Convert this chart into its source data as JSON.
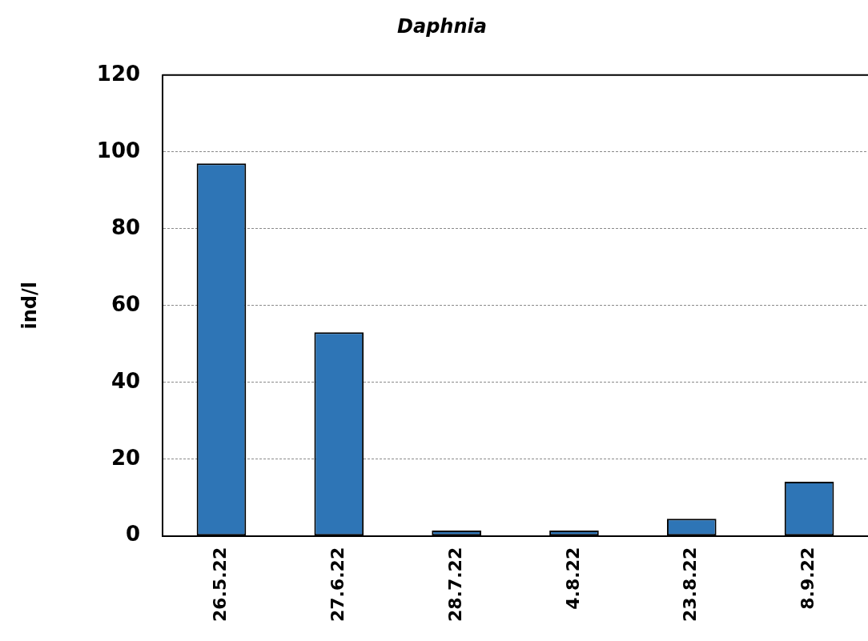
{
  "chart_data": {
    "type": "bar",
    "title": "Daphnia",
    "ylabel": "ind/l",
    "categories": [
      "26.5.22",
      "27.6.22",
      "28.7.22",
      "4.8.22",
      "23.8.22",
      "8.9.22"
    ],
    "values": [
      97,
      53,
      1.4,
      1.4,
      4.5,
      14.1
    ],
    "color": "#2e75b6",
    "ylim": [
      0,
      120
    ],
    "yticks": [
      0,
      20,
      40,
      60,
      80,
      100,
      120
    ],
    "grid": "y",
    "legend": false
  }
}
